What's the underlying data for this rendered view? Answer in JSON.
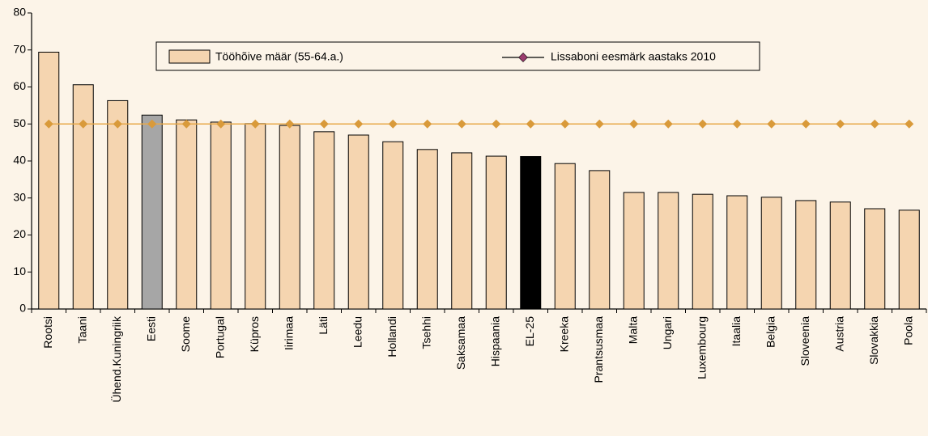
{
  "chart_data": {
    "type": "bar_line",
    "categories": [
      "Rootsi",
      "Taani",
      "Ühend.Kuningriik",
      "Eesti",
      "Soome",
      "Portugal",
      "Küpros",
      "Iirimaa",
      "Läti",
      "Leedu",
      "Hollandi",
      "Tsehhi",
      "Saksamaa",
      "Hispaania",
      "EL-25",
      "Kreeka",
      "Prantsusmaa",
      "Malta",
      "Ungari",
      "Luxembourg",
      "Itaalia",
      "Belgia",
      "Sloveenia",
      "Austria",
      "Slovakkia",
      "Poola"
    ],
    "series": [
      {
        "name": "Tööhõive määr (55-64.a.)",
        "type": "bar",
        "color": "#f5d5b0",
        "colors": [
          "#f5d5b0",
          "#f5d5b0",
          "#f5d5b0",
          "#a6a6a6",
          "#f5d5b0",
          "#f5d5b0",
          "#f5d5b0",
          "#f5d5b0",
          "#f5d5b0",
          "#f5d5b0",
          "#f5d5b0",
          "#f5d5b0",
          "#f5d5b0",
          "#f5d5b0",
          "#000000",
          "#f5d5b0",
          "#f5d5b0",
          "#f5d5b0",
          "#f5d5b0",
          "#f5d5b0",
          "#f5d5b0",
          "#f5d5b0",
          "#f5d5b0",
          "#f5d5b0",
          "#f5d5b0",
          "#f5d5b0"
        ],
        "values": [
          69.4,
          60.6,
          56.3,
          52.4,
          51.1,
          50.5,
          50.1,
          49.6,
          47.9,
          47.0,
          45.2,
          43.1,
          42.2,
          41.3,
          41.2,
          39.3,
          37.4,
          31.5,
          31.5,
          31.0,
          30.6,
          30.2,
          29.3,
          28.9,
          27.1,
          26.7
        ]
      },
      {
        "name": "Lissaboni eesmärk aastaks 2010",
        "type": "line",
        "color": "#e8a94a",
        "marker_color": "#d99a3a",
        "legend_marker_color": "#9b3d6e",
        "values": [
          50,
          50,
          50,
          50,
          50,
          50,
          50,
          50,
          50,
          50,
          50,
          50,
          50,
          50,
          50,
          50,
          50,
          50,
          50,
          50,
          50,
          50,
          50,
          50,
          50,
          50
        ]
      }
    ],
    "ylim": [
      0,
      80
    ],
    "yticks": [
      0,
      10,
      20,
      30,
      40,
      50,
      60,
      70,
      80
    ],
    "grid": false
  }
}
